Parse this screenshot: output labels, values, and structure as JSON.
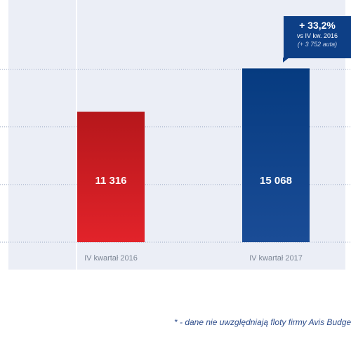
{
  "chart_data": {
    "type": "bar",
    "categories": [
      "IV kwartał 2016",
      "IV kwartał 2017"
    ],
    "values": [
      11316,
      15068
    ],
    "value_labels": [
      "11 316",
      "15 068"
    ],
    "colors": [
      "#d21d22",
      "#0d3f86"
    ],
    "ylim": [
      0,
      20000
    ],
    "gridlines": [
      0,
      5000,
      10000,
      15000
    ],
    "grid": true
  },
  "callout": {
    "main": "+ 33,2%",
    "sub": "vs IV kw. 2016",
    "note": "(+ 3 752 auta)"
  },
  "footnote": "* - dane nie uwzględniają floty firmy Avis Budget (..."
}
